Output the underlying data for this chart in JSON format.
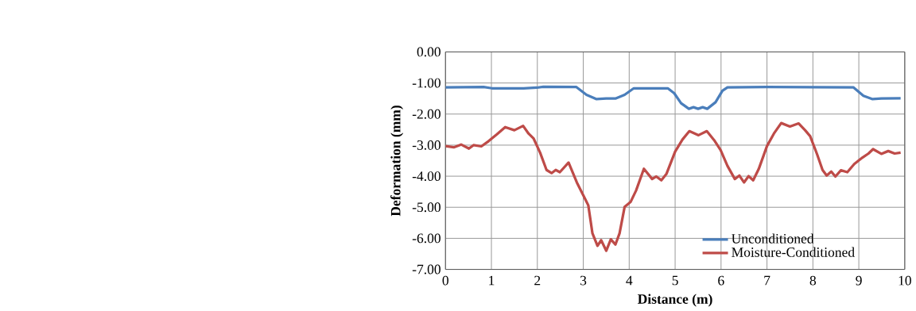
{
  "chart_data": {
    "type": "line",
    "xlabel": "Distance (m)",
    "ylabel": "Deformation (mm)",
    "xlim": [
      0,
      10
    ],
    "xticks": [
      0,
      1,
      2,
      3,
      4,
      5,
      6,
      7,
      8,
      9,
      10
    ],
    "ylim": [
      -7,
      0
    ],
    "yticks": [
      {
        "value": -7,
        "label": "-7.00"
      },
      {
        "value": -6,
        "label": "-6.00"
      },
      {
        "value": -5,
        "label": "-5.00"
      },
      {
        "value": -4,
        "label": "-4.00"
      },
      {
        "value": -3,
        "label": "-3.00"
      },
      {
        "value": -2,
        "label": "-2.00"
      },
      {
        "value": -1,
        "label": "-1.00"
      },
      {
        "value": 0,
        "label": "0.00"
      }
    ],
    "grid": true,
    "legend": "bottom right",
    "marker": "none",
    "line_style": "solid",
    "series": [
      {
        "name": "Unconditioned",
        "color": "#4a7ebb",
        "x": [
          0,
          0.83,
          1.01,
          1.7,
          1.99,
          2.13,
          2.85,
          3.07,
          3.29,
          3.5,
          3.7,
          3.9,
          4.1,
          4.84,
          4.98,
          5.13,
          5.3,
          5.4,
          5.5,
          5.6,
          5.7,
          5.88,
          6.03,
          6.14,
          7.0,
          8.88,
          9.1,
          9.3,
          9.49,
          9.91
        ],
        "values": [
          -1.14,
          -1.13,
          -1.17,
          -1.17,
          -1.15,
          -1.12,
          -1.13,
          -1.38,
          -1.52,
          -1.5,
          -1.5,
          -1.38,
          -1.17,
          -1.17,
          -1.33,
          -1.65,
          -1.83,
          -1.78,
          -1.83,
          -1.78,
          -1.83,
          -1.62,
          -1.25,
          -1.14,
          -1.13,
          -1.14,
          -1.41,
          -1.52,
          -1.5,
          -1.49
        ]
      },
      {
        "name": "Moisture-Conditioned",
        "color": "#be4b48",
        "x": [
          0,
          0.18,
          0.34,
          0.51,
          0.61,
          0.78,
          0.94,
          1.12,
          1.3,
          1.5,
          1.69,
          1.81,
          1.92,
          2.06,
          2.2,
          2.31,
          2.4,
          2.49,
          2.68,
          2.86,
          3.04,
          3.11,
          3.2,
          3.31,
          3.39,
          3.5,
          3.6,
          3.7,
          3.79,
          3.9,
          4.03,
          4.15,
          4.32,
          4.5,
          4.59,
          4.7,
          4.81,
          5.0,
          5.16,
          5.31,
          5.51,
          5.69,
          5.85,
          5.99,
          6.14,
          6.3,
          6.4,
          6.5,
          6.6,
          6.7,
          6.82,
          7.0,
          7.15,
          7.31,
          7.5,
          7.69,
          7.83,
          7.94,
          8.09,
          8.21,
          8.3,
          8.4,
          8.49,
          8.61,
          8.75,
          8.9,
          9.08,
          9.21,
          9.31,
          9.49,
          9.64,
          9.78,
          9.91
        ],
        "values": [
          -3.03,
          -3.07,
          -2.98,
          -3.11,
          -3.0,
          -3.04,
          -2.87,
          -2.65,
          -2.42,
          -2.52,
          -2.38,
          -2.63,
          -2.79,
          -3.24,
          -3.8,
          -3.9,
          -3.8,
          -3.87,
          -3.56,
          -4.2,
          -4.73,
          -4.94,
          -5.84,
          -6.24,
          -6.06,
          -6.4,
          -6.03,
          -6.2,
          -5.84,
          -4.99,
          -4.83,
          -4.46,
          -3.76,
          -4.09,
          -4.01,
          -4.13,
          -3.93,
          -3.21,
          -2.82,
          -2.55,
          -2.68,
          -2.55,
          -2.84,
          -3.16,
          -3.67,
          -4.09,
          -3.98,
          -4.2,
          -4.0,
          -4.13,
          -3.77,
          -3.03,
          -2.63,
          -2.29,
          -2.4,
          -2.3,
          -2.52,
          -2.71,
          -3.29,
          -3.8,
          -3.98,
          -3.85,
          -4.01,
          -3.81,
          -3.87,
          -3.61,
          -3.4,
          -3.27,
          -3.13,
          -3.28,
          -3.19,
          -3.27,
          -3.24
        ]
      }
    ]
  }
}
